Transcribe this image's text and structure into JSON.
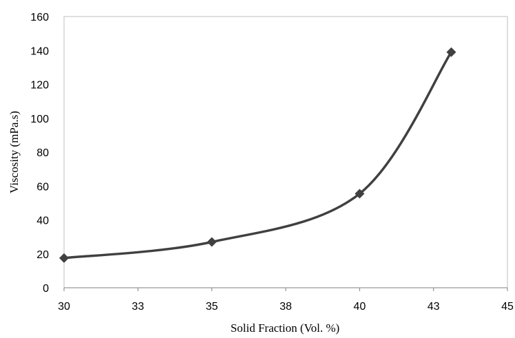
{
  "chart_data": {
    "type": "line",
    "title": "",
    "xlabel": "Solid Fraction (Vol. %)",
    "ylabel": "Viscosity (mPa.s)",
    "xlim": [
      30,
      45
    ],
    "ylim": [
      0,
      160
    ],
    "x_ticks": [
      30,
      32.5,
      35,
      37.5,
      40,
      42.5,
      45
    ],
    "x_tick_labels": [
      "30",
      "33",
      "35",
      "38",
      "40",
      "43",
      "45"
    ],
    "y_ticks": [
      0,
      20,
      40,
      60,
      80,
      100,
      120,
      140,
      160
    ],
    "y_tick_labels": [
      "0",
      "20",
      "40",
      "60",
      "80",
      "100",
      "120",
      "140",
      "160"
    ],
    "grid": false,
    "legend": "none",
    "line_style": "smoothed",
    "marker": "diamond",
    "series": [
      {
        "x": [
          30,
          35,
          40,
          43.1
        ],
        "y": [
          17.5,
          27,
          55.5,
          139
        ],
        "color": "#404040"
      }
    ]
  }
}
